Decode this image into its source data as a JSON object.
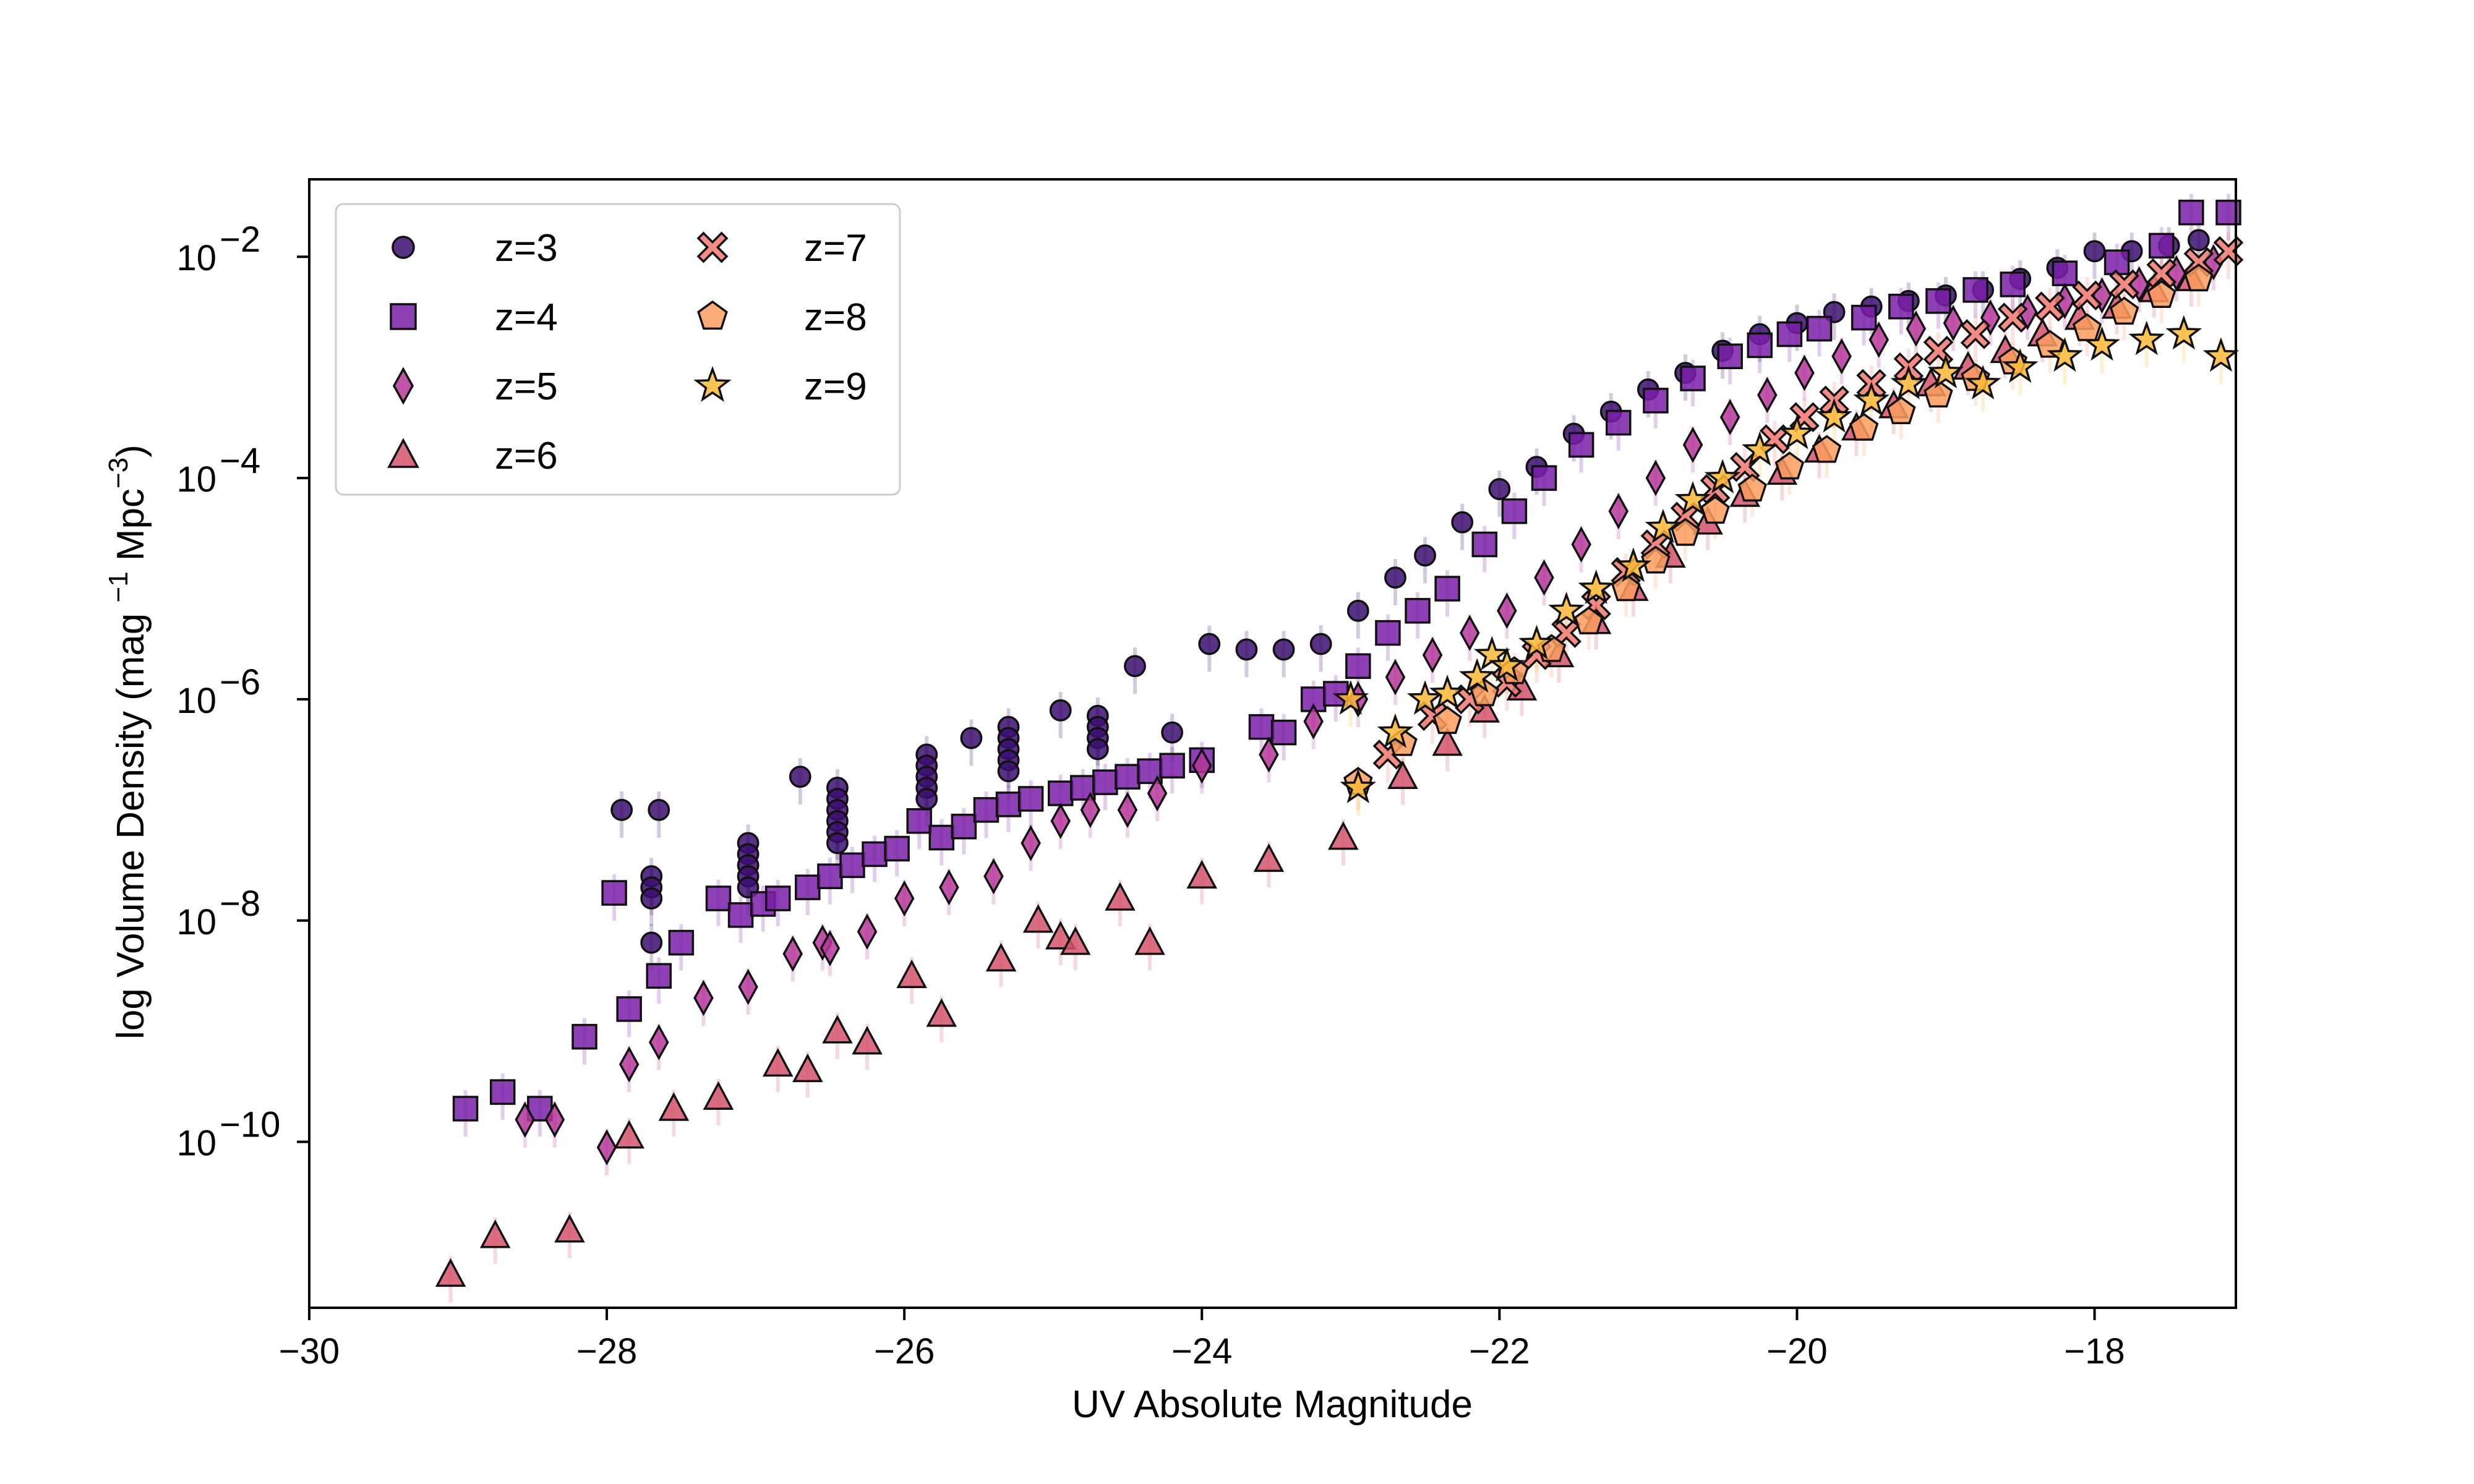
{
  "chart_data": {
    "type": "scatter",
    "xlabel": "UV Absolute Magnitude",
    "ylabel_parts": [
      "log Volume Density (mag ",
      "−1",
      " Mpc",
      "−3",
      ")"
    ],
    "xlim": [
      -30,
      -17.05
    ],
    "ylim_log10": [
      -11.5,
      -1.3
    ],
    "x_ticks": [
      -30,
      -28,
      -26,
      -24,
      -22,
      -20,
      -18
    ],
    "x_tick_labels": [
      "−30",
      "−28",
      "−26",
      "−24",
      "−22",
      "−20",
      "−18"
    ],
    "y_ticks": [
      -10,
      -8,
      -6,
      -4,
      -2
    ],
    "y_tick_base": "10",
    "y_tick_exponents": [
      "−10",
      "−8",
      "−6",
      "−4",
      "−2"
    ],
    "legend_position": "upper-left",
    "series": [
      {
        "name": "z=3",
        "marker": "circle",
        "color": "#3b0f70",
        "points": [
          [
            -27.9,
            -7.0
          ],
          [
            -27.65,
            -7.0
          ],
          [
            -27.7,
            -7.6
          ],
          [
            -27.7,
            -7.7
          ],
          [
            -27.7,
            -7.8
          ],
          [
            -27.7,
            -8.2
          ],
          [
            -27.05,
            -7.3
          ],
          [
            -27.05,
            -7.4
          ],
          [
            -27.05,
            -7.5
          ],
          [
            -27.05,
            -7.6
          ],
          [
            -27.05,
            -7.7
          ],
          [
            -26.7,
            -6.7
          ],
          [
            -26.45,
            -6.8
          ],
          [
            -26.45,
            -6.9
          ],
          [
            -26.45,
            -7.0
          ],
          [
            -26.45,
            -7.1
          ],
          [
            -26.45,
            -7.2
          ],
          [
            -26.45,
            -7.3
          ],
          [
            -25.85,
            -6.5
          ],
          [
            -25.85,
            -6.6
          ],
          [
            -25.85,
            -6.7
          ],
          [
            -25.85,
            -6.8
          ],
          [
            -25.85,
            -6.9
          ],
          [
            -25.55,
            -6.35
          ],
          [
            -25.3,
            -6.25
          ],
          [
            -25.3,
            -6.35
          ],
          [
            -25.3,
            -6.45
          ],
          [
            -25.3,
            -6.55
          ],
          [
            -25.3,
            -6.65
          ],
          [
            -24.95,
            -6.1
          ],
          [
            -24.7,
            -6.15
          ],
          [
            -24.7,
            -6.25
          ],
          [
            -24.7,
            -6.35
          ],
          [
            -24.7,
            -6.45
          ],
          [
            -24.45,
            -5.7
          ],
          [
            -24.2,
            -6.3
          ],
          [
            -23.95,
            -5.5
          ],
          [
            -23.7,
            -5.55
          ],
          [
            -23.45,
            -5.55
          ],
          [
            -23.2,
            -5.5
          ],
          [
            -22.95,
            -5.2
          ],
          [
            -22.7,
            -4.9
          ],
          [
            -22.5,
            -4.7
          ],
          [
            -22.25,
            -4.4
          ],
          [
            -22.0,
            -4.1
          ],
          [
            -21.75,
            -3.9
          ],
          [
            -21.5,
            -3.6
          ],
          [
            -21.25,
            -3.4
          ],
          [
            -21.0,
            -3.2
          ],
          [
            -20.75,
            -3.05
          ],
          [
            -20.5,
            -2.85
          ],
          [
            -20.25,
            -2.7
          ],
          [
            -20.0,
            -2.6
          ],
          [
            -19.75,
            -2.5
          ],
          [
            -19.5,
            -2.45
          ],
          [
            -19.25,
            -2.4
          ],
          [
            -19.0,
            -2.35
          ],
          [
            -18.75,
            -2.3
          ],
          [
            -18.5,
            -2.2
          ],
          [
            -18.25,
            -2.1
          ],
          [
            -18.0,
            -1.95
          ],
          [
            -17.75,
            -1.95
          ],
          [
            -17.5,
            -1.9
          ],
          [
            -17.3,
            -1.85
          ]
        ]
      },
      {
        "name": "z=4",
        "marker": "square",
        "color": "#7a1fa8",
        "points": [
          [
            -28.95,
            -9.7
          ],
          [
            -28.7,
            -9.55
          ],
          [
            -28.45,
            -9.7
          ],
          [
            -28.15,
            -9.05
          ],
          [
            -27.95,
            -7.75
          ],
          [
            -27.85,
            -8.8
          ],
          [
            -27.65,
            -8.5
          ],
          [
            -27.5,
            -8.2
          ],
          [
            -27.25,
            -7.8
          ],
          [
            -27.1,
            -7.95
          ],
          [
            -26.95,
            -7.85
          ],
          [
            -26.85,
            -7.8
          ],
          [
            -26.65,
            -7.7
          ],
          [
            -26.5,
            -7.6
          ],
          [
            -26.35,
            -7.5
          ],
          [
            -26.2,
            -7.4
          ],
          [
            -26.05,
            -7.35
          ],
          [
            -25.9,
            -7.1
          ],
          [
            -25.75,
            -7.25
          ],
          [
            -25.6,
            -7.15
          ],
          [
            -25.45,
            -7.0
          ],
          [
            -25.3,
            -6.95
          ],
          [
            -25.15,
            -6.9
          ],
          [
            -24.95,
            -6.85
          ],
          [
            -24.8,
            -6.8
          ],
          [
            -24.65,
            -6.75
          ],
          [
            -24.5,
            -6.7
          ],
          [
            -24.35,
            -6.65
          ],
          [
            -24.2,
            -6.6
          ],
          [
            -24.0,
            -6.55
          ],
          [
            -23.6,
            -6.25
          ],
          [
            -23.45,
            -6.3
          ],
          [
            -23.25,
            -6.0
          ],
          [
            -23.1,
            -5.95
          ],
          [
            -22.95,
            -5.7
          ],
          [
            -22.75,
            -5.4
          ],
          [
            -22.55,
            -5.2
          ],
          [
            -22.35,
            -5.0
          ],
          [
            -22.1,
            -4.6
          ],
          [
            -21.9,
            -4.3
          ],
          [
            -21.7,
            -4.0
          ],
          [
            -21.45,
            -3.7
          ],
          [
            -21.2,
            -3.5
          ],
          [
            -20.95,
            -3.3
          ],
          [
            -20.7,
            -3.1
          ],
          [
            -20.45,
            -2.9
          ],
          [
            -20.25,
            -2.8
          ],
          [
            -20.05,
            -2.7
          ],
          [
            -19.85,
            -2.65
          ],
          [
            -19.55,
            -2.55
          ],
          [
            -19.3,
            -2.45
          ],
          [
            -19.05,
            -2.4
          ],
          [
            -18.8,
            -2.3
          ],
          [
            -18.55,
            -2.25
          ],
          [
            -18.2,
            -2.15
          ],
          [
            -17.85,
            -2.05
          ],
          [
            -17.55,
            -1.9
          ],
          [
            -17.35,
            -1.6
          ],
          [
            -17.1,
            -1.6
          ]
        ]
      },
      {
        "name": "z=5",
        "marker": "diamond",
        "color": "#b5379a",
        "points": [
          [
            -28.55,
            -9.8
          ],
          [
            -28.35,
            -9.8
          ],
          [
            -28.0,
            -10.05
          ],
          [
            -27.85,
            -9.3
          ],
          [
            -27.65,
            -9.1
          ],
          [
            -27.35,
            -8.7
          ],
          [
            -27.05,
            -8.6
          ],
          [
            -26.75,
            -8.3
          ],
          [
            -26.55,
            -8.2
          ],
          [
            -26.5,
            -8.25
          ],
          [
            -26.25,
            -8.1
          ],
          [
            -26.0,
            -7.8
          ],
          [
            -25.7,
            -7.7
          ],
          [
            -25.4,
            -7.6
          ],
          [
            -25.15,
            -7.3
          ],
          [
            -24.95,
            -7.1
          ],
          [
            -24.75,
            -7.0
          ],
          [
            -24.5,
            -7.0
          ],
          [
            -24.3,
            -6.85
          ],
          [
            -24.0,
            -6.6
          ],
          [
            -23.55,
            -6.5
          ],
          [
            -23.25,
            -6.2
          ],
          [
            -22.95,
            -6.0
          ],
          [
            -22.7,
            -5.8
          ],
          [
            -22.45,
            -5.6
          ],
          [
            -22.2,
            -5.4
          ],
          [
            -21.95,
            -5.2
          ],
          [
            -21.7,
            -4.9
          ],
          [
            -21.45,
            -4.6
          ],
          [
            -21.2,
            -4.3
          ],
          [
            -20.95,
            -4.0
          ],
          [
            -20.7,
            -3.7
          ],
          [
            -20.45,
            -3.45
          ],
          [
            -20.2,
            -3.25
          ],
          [
            -19.95,
            -3.05
          ],
          [
            -19.7,
            -2.9
          ],
          [
            -19.45,
            -2.75
          ],
          [
            -19.2,
            -2.65
          ],
          [
            -18.95,
            -2.6
          ],
          [
            -18.7,
            -2.55
          ],
          [
            -18.45,
            -2.5
          ],
          [
            -18.2,
            -2.4
          ],
          [
            -17.95,
            -2.35
          ],
          [
            -17.7,
            -2.25
          ],
          [
            -17.45,
            -2.15
          ],
          [
            -17.2,
            -2.05
          ]
        ]
      },
      {
        "name": "z=6",
        "marker": "triangle",
        "color": "#d4536b",
        "points": [
          [
            -29.05,
            -11.2
          ],
          [
            -28.75,
            -10.85
          ],
          [
            -28.25,
            -10.8
          ],
          [
            -27.85,
            -9.95
          ],
          [
            -27.55,
            -9.7
          ],
          [
            -27.25,
            -9.6
          ],
          [
            -26.85,
            -9.3
          ],
          [
            -26.65,
            -9.35
          ],
          [
            -26.45,
            -9.0
          ],
          [
            -26.25,
            -9.1
          ],
          [
            -25.95,
            -8.5
          ],
          [
            -25.75,
            -8.85
          ],
          [
            -25.35,
            -8.35
          ],
          [
            -25.1,
            -8.0
          ],
          [
            -24.95,
            -8.15
          ],
          [
            -24.85,
            -8.2
          ],
          [
            -24.55,
            -7.8
          ],
          [
            -24.35,
            -8.2
          ],
          [
            -24.0,
            -7.6
          ],
          [
            -23.55,
            -7.45
          ],
          [
            -23.05,
            -7.25
          ],
          [
            -22.65,
            -6.7
          ],
          [
            -22.35,
            -6.4
          ],
          [
            -22.1,
            -6.1
          ],
          [
            -21.85,
            -5.9
          ],
          [
            -21.6,
            -5.6
          ],
          [
            -21.35,
            -5.3
          ],
          [
            -21.1,
            -5.0
          ],
          [
            -20.85,
            -4.7
          ],
          [
            -20.6,
            -4.4
          ],
          [
            -20.35,
            -4.15
          ],
          [
            -20.1,
            -3.95
          ],
          [
            -19.85,
            -3.75
          ],
          [
            -19.6,
            -3.55
          ],
          [
            -19.35,
            -3.35
          ],
          [
            -19.1,
            -3.15
          ],
          [
            -18.85,
            -3.0
          ],
          [
            -18.6,
            -2.85
          ],
          [
            -18.35,
            -2.7
          ],
          [
            -18.1,
            -2.55
          ],
          [
            -17.85,
            -2.45
          ],
          [
            -17.6,
            -2.3
          ],
          [
            -17.35,
            -2.2
          ]
        ]
      },
      {
        "name": "z=7",
        "marker": "x",
        "color": "#f07870",
        "points": [
          [
            -22.75,
            -6.5
          ],
          [
            -22.45,
            -6.15
          ],
          [
            -22.2,
            -6.0
          ],
          [
            -21.95,
            -5.85
          ],
          [
            -21.75,
            -5.6
          ],
          [
            -21.55,
            -5.4
          ],
          [
            -21.35,
            -5.15
          ],
          [
            -21.15,
            -4.85
          ],
          [
            -20.95,
            -4.6
          ],
          [
            -20.75,
            -4.35
          ],
          [
            -20.55,
            -4.1
          ],
          [
            -20.35,
            -3.9
          ],
          [
            -20.15,
            -3.65
          ],
          [
            -19.95,
            -3.45
          ],
          [
            -19.75,
            -3.3
          ],
          [
            -19.5,
            -3.15
          ],
          [
            -19.25,
            -3.0
          ],
          [
            -19.05,
            -2.85
          ],
          [
            -18.8,
            -2.7
          ],
          [
            -18.55,
            -2.55
          ],
          [
            -18.3,
            -2.45
          ],
          [
            -18.05,
            -2.35
          ],
          [
            -17.8,
            -2.25
          ],
          [
            -17.55,
            -2.15
          ],
          [
            -17.3,
            -2.05
          ],
          [
            -17.1,
            -1.95
          ]
        ]
      },
      {
        "name": "z=8",
        "marker": "pentagon",
        "color": "#fb9e5e",
        "points": [
          [
            -22.95,
            -6.75
          ],
          [
            -22.65,
            -6.4
          ],
          [
            -22.35,
            -6.2
          ],
          [
            -22.1,
            -5.95
          ],
          [
            -21.9,
            -5.75
          ],
          [
            -21.65,
            -5.55
          ],
          [
            -21.4,
            -5.3
          ],
          [
            -21.15,
            -5.0
          ],
          [
            -20.95,
            -4.75
          ],
          [
            -20.75,
            -4.5
          ],
          [
            -20.55,
            -4.3
          ],
          [
            -20.3,
            -4.1
          ],
          [
            -20.05,
            -3.9
          ],
          [
            -19.8,
            -3.75
          ],
          [
            -19.55,
            -3.55
          ],
          [
            -19.3,
            -3.4
          ],
          [
            -19.05,
            -3.25
          ],
          [
            -18.8,
            -3.1
          ],
          [
            -18.55,
            -2.95
          ],
          [
            -18.3,
            -2.8
          ],
          [
            -18.05,
            -2.65
          ],
          [
            -17.8,
            -2.5
          ],
          [
            -17.55,
            -2.35
          ],
          [
            -17.3,
            -2.2
          ]
        ]
      },
      {
        "name": "z=9",
        "marker": "star",
        "color": "#fbb937",
        "points": [
          [
            -23.0,
            -6.0
          ],
          [
            -22.95,
            -6.8
          ],
          [
            -22.7,
            -6.3
          ],
          [
            -22.5,
            -6.0
          ],
          [
            -22.35,
            -5.95
          ],
          [
            -22.15,
            -5.8
          ],
          [
            -22.05,
            -5.6
          ],
          [
            -21.95,
            -5.7
          ],
          [
            -21.75,
            -5.5
          ],
          [
            -21.55,
            -5.2
          ],
          [
            -21.35,
            -5.0
          ],
          [
            -21.1,
            -4.8
          ],
          [
            -20.9,
            -4.45
          ],
          [
            -20.7,
            -4.2
          ],
          [
            -20.5,
            -4.0
          ],
          [
            -20.25,
            -3.75
          ],
          [
            -20.0,
            -3.6
          ],
          [
            -19.75,
            -3.45
          ],
          [
            -19.5,
            -3.3
          ],
          [
            -19.25,
            -3.15
          ],
          [
            -19.0,
            -3.05
          ],
          [
            -18.75,
            -3.15
          ],
          [
            -18.5,
            -3.0
          ],
          [
            -18.2,
            -2.9
          ],
          [
            -17.95,
            -2.8
          ],
          [
            -17.65,
            -2.75
          ],
          [
            -17.4,
            -2.7
          ],
          [
            -17.15,
            -2.9
          ]
        ]
      }
    ]
  }
}
